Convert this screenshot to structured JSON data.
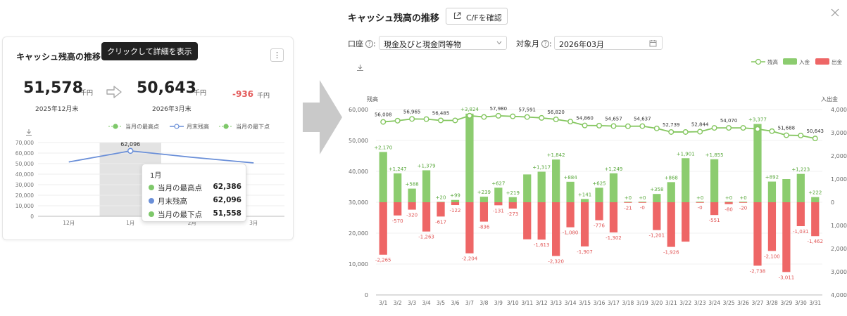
{
  "card": {
    "title": "キャッシュ残高の推移",
    "hint": "クリックして詳細を表示",
    "menu_label": "⋮",
    "start_value": "51,578",
    "start_unit": "千円",
    "start_date": "2025年12月末",
    "end_value": "50,643",
    "end_unit": "千円",
    "end_date": "2026年3月末",
    "diff_value": "-936",
    "diff_unit": "千円",
    "legend": [
      "当月の最高点",
      "月末残高",
      "当月の最下点"
    ],
    "tooltip": {
      "title": "1月",
      "rows": [
        {
          "label": "当月の最高点",
          "value": "62,386",
          "color": "#7ec86a"
        },
        {
          "label": "月末残高",
          "value": "62,096",
          "color": "#6a8fd8"
        },
        {
          "label": "当月の最下点",
          "value": "51,558",
          "color": "#7ec86a"
        }
      ]
    }
  },
  "detail": {
    "title": "キャッシュ残高の推移",
    "cf_button": "C/Fを確認",
    "account_label": "口座",
    "account_value": "現金及びと現金同等物",
    "month_label": "対象月",
    "month_value": "2026年03月",
    "left_axis_title": "残高",
    "right_axis_title": "入出金",
    "legend": [
      "残高",
      "入金",
      "出金"
    ]
  },
  "chart_data": [
    {
      "type": "line",
      "categories": [
        "12月",
        "1月",
        "2月",
        "3月"
      ],
      "series": [
        {
          "name": "月末残高",
          "values": [
            51578,
            62096,
            56000,
            50643
          ]
        },
        {
          "name": "当月の最高点",
          "values": [
            null,
            62386,
            null,
            null
          ]
        },
        {
          "name": "当月の最下点",
          "values": [
            null,
            51558,
            null,
            null
          ]
        }
      ],
      "point_labels": [
        "",
        "62,096",
        "",
        ""
      ],
      "yticks": [
        "0",
        "10,000",
        "20,000",
        "30,000",
        "40,000",
        "50,000",
        "60,000",
        "70,000"
      ],
      "ylim": [
        0,
        70000
      ],
      "highlight_category": "1月",
      "colors": {
        "balance": "#6a8fd8",
        "peak": "#7ec86a",
        "highlight": "#e3e3e3"
      }
    },
    {
      "type": "bar",
      "categories": [
        "3/1",
        "3/2",
        "3/3",
        "3/4",
        "3/5",
        "3/6",
        "3/7",
        "3/8",
        "3/9",
        "3/10",
        "3/11",
        "3/12",
        "3/13",
        "3/14",
        "3/15",
        "3/16",
        "3/17",
        "3/18",
        "3/19",
        "3/20",
        "3/21",
        "3/22",
        "3/23",
        "3/24",
        "3/25",
        "3/26",
        "3/27",
        "3/28",
        "3/29",
        "3/30",
        "3/31"
      ],
      "series": [
        {
          "name": "残高",
          "type": "line",
          "values": [
            56008,
            56400,
            56965,
            56900,
            56485,
            56485,
            58000,
            57600,
            57980,
            57800,
            57591,
            57300,
            56820,
            56100,
            54860,
            54800,
            54657,
            54600,
            54637,
            53900,
            52739,
            52739,
            52844,
            54070,
            54070,
            54070,
            53700,
            53000,
            51688,
            51600,
            50643
          ]
        },
        {
          "name": "入金",
          "type": "bar",
          "values": [
            2170,
            1247,
            588,
            1379,
            20,
            99,
            3824,
            239,
            627,
            219,
            1200,
            1317,
            1842,
            884,
            141,
            625,
            1249,
            0,
            0,
            358,
            868,
            1901,
            0,
            1855,
            0,
            0,
            3377,
            892,
            1000,
            1223,
            222
          ]
        },
        {
          "name": "出金",
          "type": "bar",
          "values": [
            -2265,
            -570,
            -320,
            -1263,
            -617,
            -122,
            -2204,
            -836,
            -131,
            -273,
            -1600,
            -1613,
            -2320,
            -1080,
            -1907,
            -776,
            -1302,
            -21,
            0,
            -1201,
            -1926,
            -1700,
            0,
            -551,
            -80,
            -20,
            -2738,
            -2100,
            -3011,
            -1031,
            -1462
          ]
        }
      ],
      "line_labels": [
        "56,008",
        "",
        "56,965",
        "",
        "56,485",
        "",
        "",
        "",
        "57,980",
        "",
        "57,591",
        "",
        "56,820",
        "",
        "54,860",
        "",
        "54,657",
        "",
        "54,637",
        "",
        "52,739",
        "",
        "52,844",
        "",
        "54,070",
        "",
        "",
        "",
        "51,688",
        "",
        "50,643"
      ],
      "in_labels": [
        "+2,170",
        "+1,247",
        "+588",
        "+1,379",
        "+20",
        "+99",
        "+3,824",
        "+239",
        "+627",
        "+219",
        "",
        "+1,317",
        "+1,842",
        "+884",
        "+141",
        "+625",
        "+1,249",
        "+0",
        "+0",
        "+358",
        "+868",
        "+1,901",
        "+0",
        "+1,855",
        "+0",
        "+0",
        "+3,377",
        "+892",
        "",
        "+1,223",
        "+222"
      ],
      "out_labels": [
        "-2,265",
        "-570",
        "-320",
        "-1,263",
        "-617",
        "-122",
        "-2,204",
        "-836",
        "-131",
        "-273",
        "",
        "-1,613",
        "-2,320",
        "-1,080",
        "-1,907",
        "-776",
        "-1,302",
        "-21",
        "-0",
        "-1,201",
        "-1,926",
        "",
        "-0",
        "-551",
        "-80",
        "-20",
        "-2,738",
        "-2,100",
        "-3,011",
        "-1,031",
        "-1,462"
      ],
      "left_ticks": [
        "0",
        "10,000",
        "20,000",
        "30,000",
        "40,000",
        "50,000",
        "60,000"
      ],
      "ylim": [
        0,
        60000
      ],
      "right_ticks": [
        "4,000",
        "3,000",
        "2,000",
        "1,000",
        "0",
        "1,000",
        "2,000",
        "3,000",
        "4,000"
      ],
      "y2lim": [
        -4000,
        4000
      ],
      "colors": {
        "line": "#84c65f",
        "in": "#8ccc6f",
        "out": "#ee6666"
      }
    }
  ]
}
